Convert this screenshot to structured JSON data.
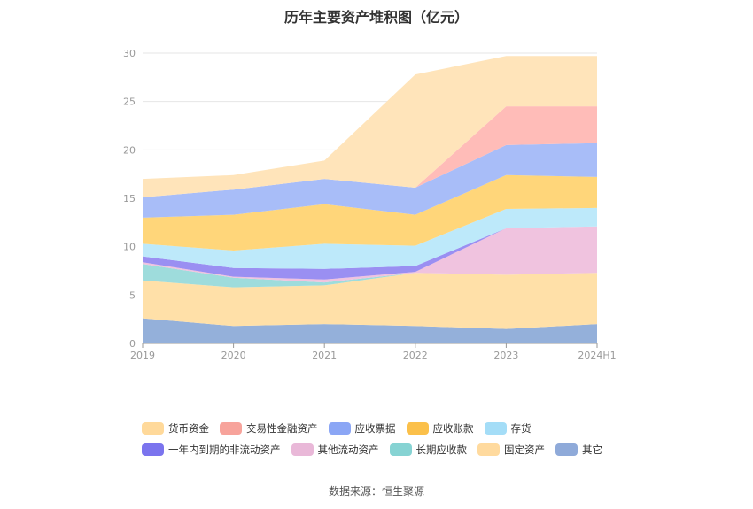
{
  "title": "历年主要资产堆积图（亿元）",
  "source": "数据来源：恒生聚源",
  "chart_data": {
    "type": "area",
    "stacked": true,
    "title": "历年主要资产堆积图（亿元）",
    "categories": [
      "2019",
      "2020",
      "2021",
      "2022",
      "2023",
      "2024H1"
    ],
    "ylim": [
      0,
      30
    ],
    "yticks": [
      "0",
      "5",
      "10",
      "15",
      "20",
      "25",
      "30"
    ],
    "grid": true,
    "legend_position": "bottom",
    "series": [
      {
        "name": "其它",
        "color": "#94B0DA",
        "values": [
          2.6,
          1.8,
          2.0,
          1.8,
          1.5,
          2.0
        ]
      },
      {
        "name": "固定资产",
        "color": "#FFE0A8",
        "values": [
          3.9,
          4.0,
          4.0,
          5.5,
          5.6,
          5.3
        ]
      },
      {
        "name": "长期应收款",
        "color": "#9EDCDC",
        "values": [
          1.7,
          1.0,
          0.3,
          0.0,
          0.0,
          0.0
        ]
      },
      {
        "name": "其他流动资产",
        "color": "#F0C3DF",
        "values": [
          0.2,
          0.1,
          0.3,
          0.1,
          4.8,
          4.8
        ]
      },
      {
        "name": "一年内到期的非流动资产",
        "color": "#9A8FF2",
        "values": [
          0.6,
          0.9,
          1.1,
          0.6,
          0.0,
          0.0
        ]
      },
      {
        "name": "存货",
        "color": "#BDE9FA",
        "values": [
          1.3,
          1.8,
          2.6,
          2.1,
          2.0,
          1.9
        ]
      },
      {
        "name": "应收账款",
        "color": "#FFD67A",
        "values": [
          2.7,
          3.7,
          4.1,
          3.2,
          3.5,
          3.2
        ]
      },
      {
        "name": "应收票据",
        "color": "#A8BDF8",
        "values": [
          2.1,
          2.6,
          2.6,
          2.8,
          3.1,
          3.5
        ]
      },
      {
        "name": "交易性金融资产",
        "color": "#FFBCB8",
        "values": [
          0.0,
          0.0,
          0.0,
          0.0,
          4.0,
          3.8
        ]
      },
      {
        "name": "货币资金",
        "color": "#FFE4BA",
        "values": [
          1.9,
          1.5,
          1.9,
          11.7,
          5.2,
          5.2
        ]
      }
    ]
  },
  "legend": {
    "rows": [
      [
        {
          "label": "货币资金",
          "color": "#FFD99A"
        },
        {
          "label": "交易性金融资产",
          "color": "#F7A39B"
        },
        {
          "label": "应收票据",
          "color": "#8BA6F5"
        },
        {
          "label": "应收账款",
          "color": "#FBC04A"
        },
        {
          "label": "存货",
          "color": "#A4DDF7"
        }
      ],
      [
        {
          "label": "一年内到期的非流动资产",
          "color": "#7B74EE"
        },
        {
          "label": "其他流动资产",
          "color": "#E9B8D8"
        },
        {
          "label": "长期应收款",
          "color": "#86D3D3"
        },
        {
          "label": "固定资产",
          "color": "#FFDA9E"
        },
        {
          "label": "其它",
          "color": "#8FAAD9"
        }
      ]
    ]
  }
}
